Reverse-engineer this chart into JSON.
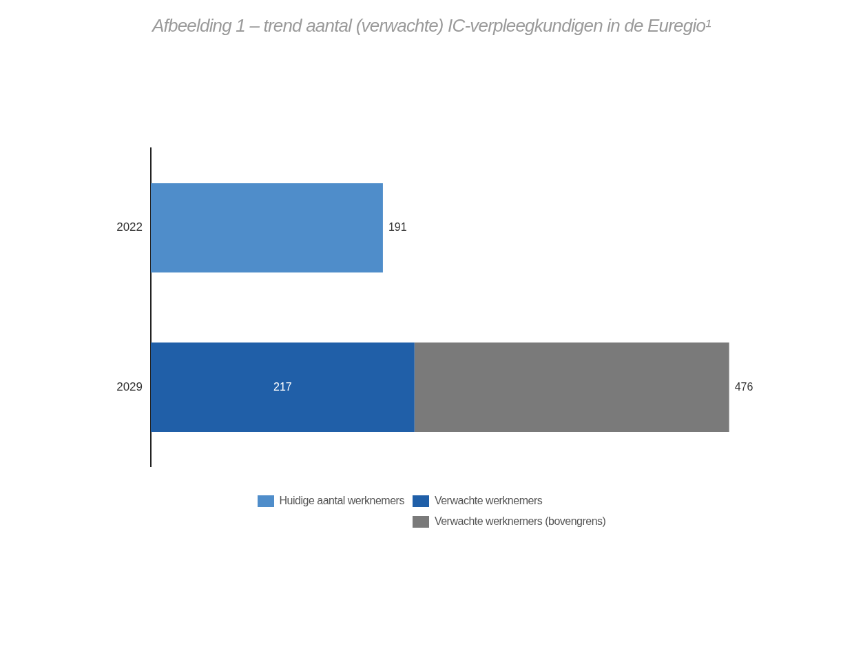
{
  "chart_data": {
    "type": "bar",
    "orientation": "horizontal",
    "stacked": true,
    "title": "Afbeelding 1 – trend aantal (verwachte) IC-verpleegkundigen in de Euregio¹",
    "categories": [
      "2022",
      "2029"
    ],
    "series": [
      {
        "name": "Huidige aantal werknemers",
        "color": "#4f8dca",
        "values": [
          191,
          null
        ],
        "value_labels": [
          "191",
          null
        ]
      },
      {
        "name": "Verwachte werknemers",
        "color": "#205fa8",
        "values": [
          null,
          217
        ],
        "value_labels": [
          null,
          "217"
        ]
      },
      {
        "name": "Verwachte werknemers (bovengrens)",
        "color": "#7a7a7a",
        "values": [
          null,
          259
        ],
        "value_labels": [
          null,
          null
        ]
      }
    ],
    "totals": [
      null,
      "476"
    ],
    "legend": "bottom",
    "grid": false
  }
}
